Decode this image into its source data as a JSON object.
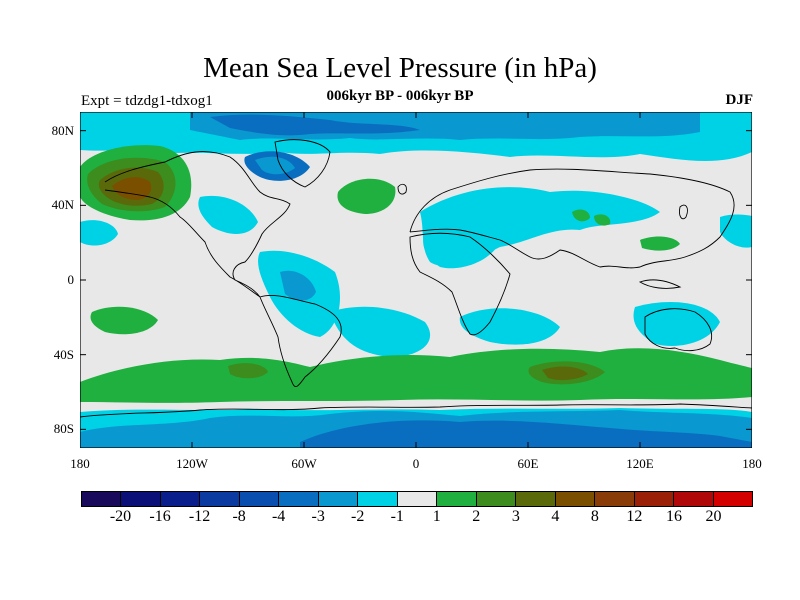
{
  "title": "Mean Sea Level Pressure (in hPa)",
  "subtitle": "006kyr BP - 006kyr BP",
  "experiment": "Expt = tdzdg1-tdxog1",
  "season": "DJF",
  "lat_labels": [
    "80N",
    "40N",
    "0",
    "40S",
    "80S"
  ],
  "lat_values": [
    80,
    40,
    0,
    -40,
    -80
  ],
  "lon_labels": [
    "180",
    "120W",
    "60W",
    "0",
    "60E",
    "120E",
    "180"
  ],
  "lon_values": [
    -180,
    -120,
    -60,
    0,
    60,
    120,
    180
  ],
  "colorbar": {
    "colors": [
      "#1a0a5c",
      "#0b0f78",
      "#0a1e8c",
      "#0b3aa0",
      "#0a4fb0",
      "#0a6ec0",
      "#0a98d0",
      "#00d2e6",
      "#e8e8e8",
      "#1fb040",
      "#3c8c1e",
      "#5a6a0a",
      "#7a5000",
      "#8a3c08",
      "#9a2008",
      "#b00808",
      "#d40000"
    ],
    "labels": [
      "-20",
      "-16",
      "-12",
      "-8",
      "-4",
      "-3",
      "-2",
      "-1",
      "1",
      "2",
      "3",
      "4",
      "8",
      "12",
      "16",
      "20"
    ]
  },
  "map_colors": {
    "background": "#e8e8e8",
    "light_cyan": "#00d2e6",
    "medium_blue": "#0a98d0",
    "blue": "#0a6ec0",
    "dark_blue": "#0a4fb0",
    "green": "#1fb040",
    "dark_green": "#3c8c1e",
    "olive": "#5a6a0a",
    "brown": "#7a5000",
    "coast": "#000000"
  }
}
